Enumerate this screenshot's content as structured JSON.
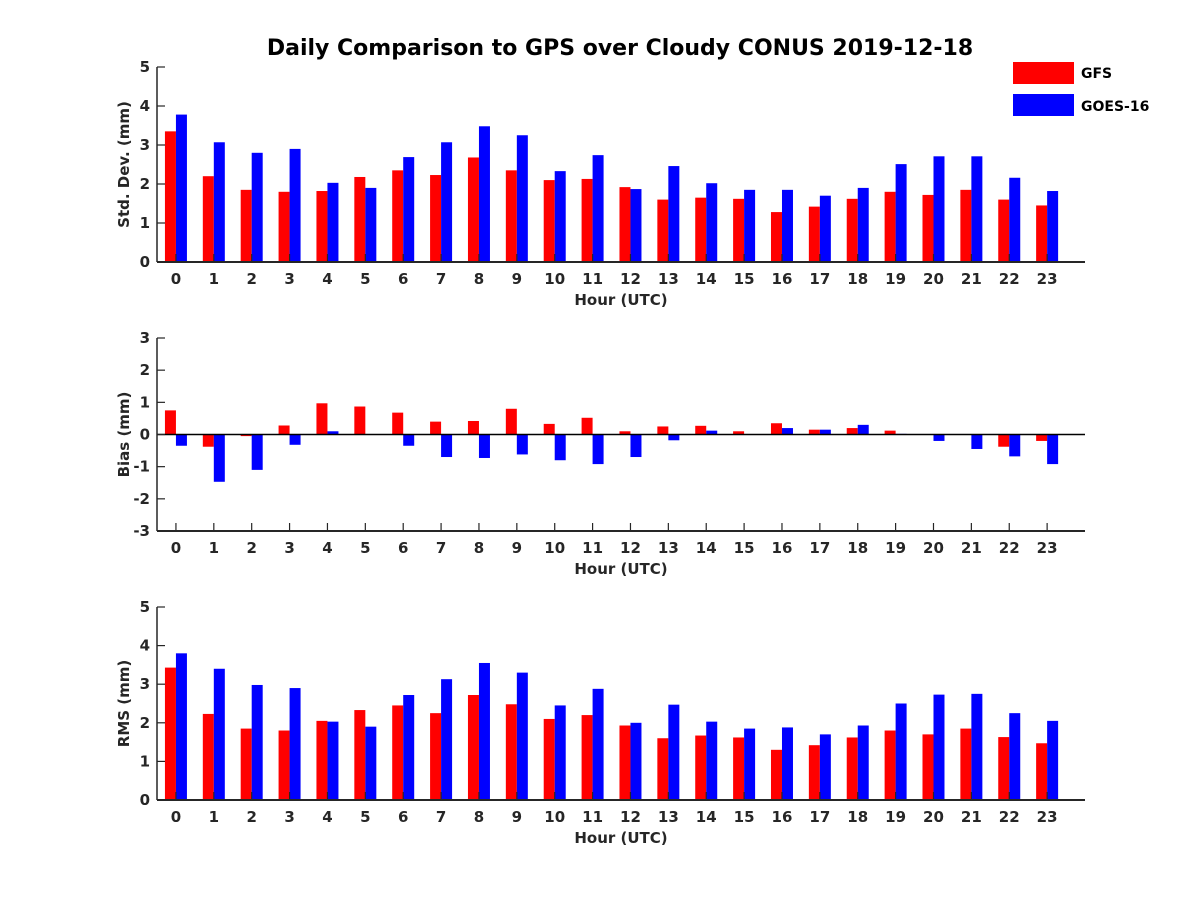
{
  "title": "Daily Comparison to GPS over Cloudy CONUS 2019-12-18",
  "legend": [
    {
      "label": "GFS",
      "color": "#ff0000"
    },
    {
      "label": "GOES-16",
      "color": "#0000ff"
    }
  ],
  "chart_data": [
    {
      "type": "bar",
      "xlabel": "Hour (UTC)",
      "ylabel": "Std. Dev. (mm)",
      "ylim": [
        0,
        5
      ],
      "yticks": [
        0,
        1,
        2,
        3,
        4,
        5
      ],
      "categories": [
        0,
        1,
        2,
        3,
        4,
        5,
        6,
        7,
        8,
        9,
        10,
        11,
        12,
        13,
        14,
        15,
        16,
        17,
        18,
        19,
        20,
        21,
        22,
        23
      ],
      "series": [
        {
          "name": "GFS",
          "color": "#ff0000",
          "values": [
            3.35,
            2.2,
            1.85,
            1.8,
            1.82,
            2.18,
            2.35,
            2.23,
            2.68,
            2.35,
            2.1,
            2.13,
            1.92,
            1.6,
            1.65,
            1.62,
            1.28,
            1.42,
            1.62,
            1.8,
            1.72,
            1.85,
            1.6,
            1.45
          ]
        },
        {
          "name": "GOES-16",
          "color": "#0000ff",
          "values": [
            3.78,
            3.07,
            2.8,
            2.9,
            2.03,
            1.9,
            2.69,
            3.07,
            3.48,
            3.25,
            2.33,
            2.74,
            1.87,
            2.46,
            2.02,
            1.85,
            1.85,
            1.7,
            1.9,
            2.51,
            2.71,
            2.71,
            2.16,
            1.82
          ]
        }
      ]
    },
    {
      "type": "bar",
      "xlabel": "Hour (UTC)",
      "ylabel": "Bias (mm)",
      "ylim": [
        -3,
        3
      ],
      "yticks": [
        -3,
        -2,
        -1,
        0,
        1,
        2,
        3
      ],
      "categories": [
        0,
        1,
        2,
        3,
        4,
        5,
        6,
        7,
        8,
        9,
        10,
        11,
        12,
        13,
        14,
        15,
        16,
        17,
        18,
        19,
        20,
        21,
        22,
        23
      ],
      "series": [
        {
          "name": "GFS",
          "color": "#ff0000",
          "values": [
            0.75,
            -0.38,
            -0.05,
            0.28,
            0.97,
            0.87,
            0.68,
            0.4,
            0.42,
            0.8,
            0.33,
            0.52,
            0.1,
            0.25,
            0.27,
            0.1,
            0.35,
            0.15,
            0.2,
            0.12,
            0.0,
            0.0,
            -0.38,
            -0.2
          ]
        },
        {
          "name": "GOES-16",
          "color": "#0000ff",
          "values": [
            -0.35,
            -1.47,
            -1.1,
            -0.32,
            0.1,
            0.0,
            -0.35,
            -0.7,
            -0.73,
            -0.62,
            -0.8,
            -0.92,
            -0.7,
            -0.18,
            0.12,
            0.0,
            0.2,
            0.15,
            0.3,
            0.02,
            -0.2,
            -0.45,
            -0.68,
            -0.92
          ]
        }
      ]
    },
    {
      "type": "bar",
      "xlabel": "Hour (UTC)",
      "ylabel": "RMS (mm)",
      "ylim": [
        0,
        5
      ],
      "yticks": [
        0,
        1,
        2,
        3,
        4,
        5
      ],
      "categories": [
        0,
        1,
        2,
        3,
        4,
        5,
        6,
        7,
        8,
        9,
        10,
        11,
        12,
        13,
        14,
        15,
        16,
        17,
        18,
        19,
        20,
        21,
        22,
        23
      ],
      "series": [
        {
          "name": "GFS",
          "color": "#ff0000",
          "values": [
            3.43,
            2.23,
            1.85,
            1.8,
            2.05,
            2.33,
            2.45,
            2.25,
            2.72,
            2.48,
            2.1,
            2.2,
            1.93,
            1.6,
            1.67,
            1.62,
            1.3,
            1.42,
            1.62,
            1.8,
            1.7,
            1.85,
            1.63,
            1.47
          ]
        },
        {
          "name": "GOES-16",
          "color": "#0000ff",
          "values": [
            3.8,
            3.4,
            2.98,
            2.9,
            2.03,
            1.9,
            2.72,
            3.13,
            3.55,
            3.3,
            2.45,
            2.88,
            2.0,
            2.47,
            2.03,
            1.85,
            1.88,
            1.7,
            1.93,
            2.5,
            2.73,
            2.75,
            2.25,
            2.05
          ]
        }
      ]
    }
  ]
}
